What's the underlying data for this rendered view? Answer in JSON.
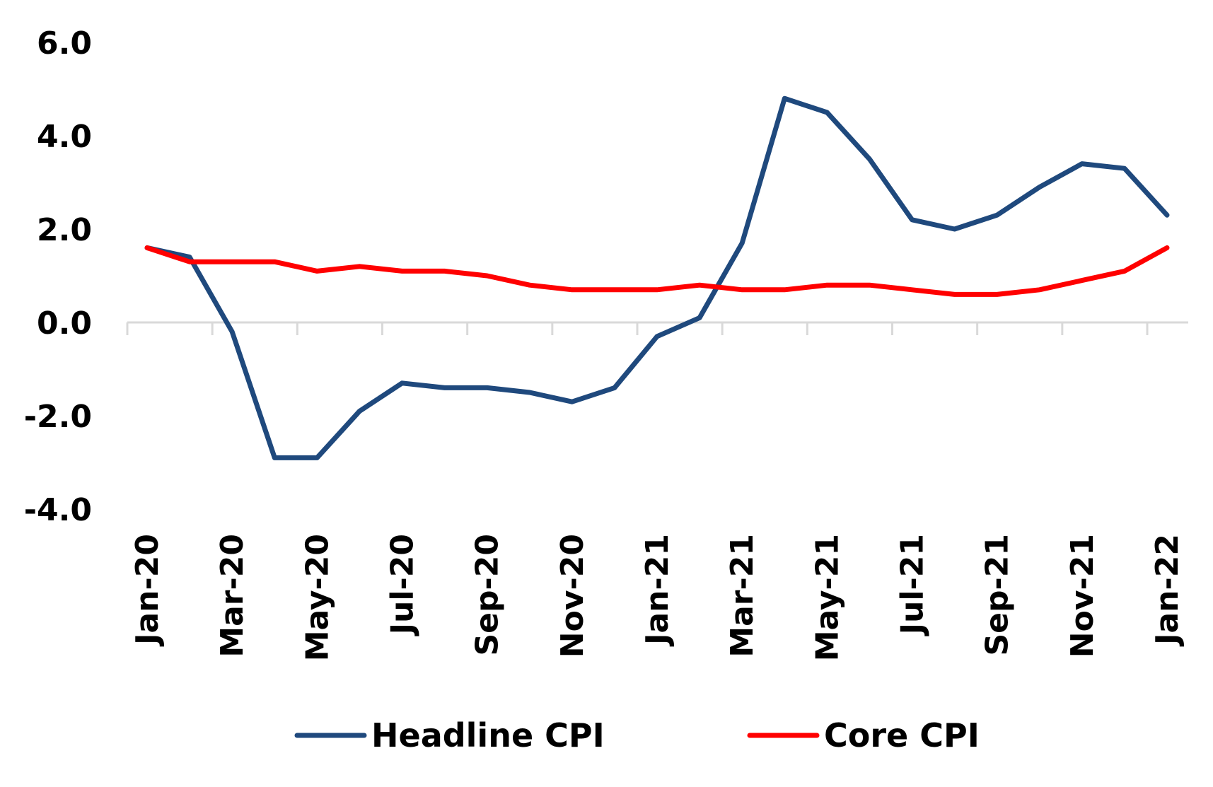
{
  "chart_data": {
    "type": "line",
    "title": "",
    "xlabel": "",
    "ylabel": "",
    "ylim": [
      -4.0,
      6.0
    ],
    "y_ticks": [
      "6.0",
      "4.0",
      "2.0",
      "0.0",
      "-2.0",
      "-4.0"
    ],
    "y_tick_values": [
      6,
      4,
      2,
      0,
      -2,
      -4
    ],
    "x": [
      "Jan-20",
      "Feb-20",
      "Mar-20",
      "Apr-20",
      "May-20",
      "Jun-20",
      "Jul-20",
      "Aug-20",
      "Sep-20",
      "Oct-20",
      "Nov-20",
      "Dec-20",
      "Jan-21",
      "Feb-21",
      "Mar-21",
      "Apr-21",
      "May-21",
      "Jun-21",
      "Jul-21",
      "Aug-21",
      "Sep-21",
      "Oct-21",
      "Nov-21",
      "Dec-21",
      "Jan-22"
    ],
    "x_tick_labels": [
      "Jan-20",
      "Mar-20",
      "May-20",
      "Jul-20",
      "Sep-20",
      "Nov-20",
      "Jan-21",
      "Mar-21",
      "May-21",
      "Jul-21",
      "Sep-21",
      "Nov-21",
      "Jan-22"
    ],
    "series": [
      {
        "name": "Headline CPI",
        "color": "#1F497D",
        "values": [
          1.6,
          1.4,
          -0.2,
          -2.9,
          -2.9,
          -1.9,
          -1.3,
          -1.4,
          -1.4,
          -1.5,
          -1.7,
          -1.4,
          -0.3,
          0.1,
          1.7,
          4.8,
          4.5,
          3.5,
          2.2,
          2.0,
          2.3,
          2.9,
          3.4,
          3.3,
          2.3
        ]
      },
      {
        "name": "Core CPI",
        "color": "#FF0000",
        "values": [
          1.6,
          1.3,
          1.3,
          1.3,
          1.1,
          1.2,
          1.1,
          1.1,
          1.0,
          0.8,
          0.7,
          0.7,
          0.7,
          0.8,
          0.7,
          0.7,
          0.8,
          0.8,
          0.7,
          0.6,
          0.6,
          0.7,
          0.9,
          1.1,
          1.6
        ]
      }
    ],
    "grid": false,
    "legend_position": "bottom"
  }
}
